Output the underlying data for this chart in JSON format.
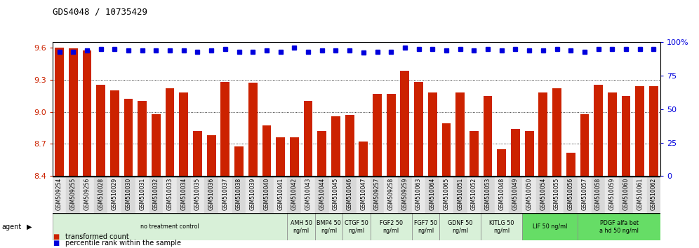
{
  "title": "GDS4048 / 10735429",
  "samples": [
    "GSM509254",
    "GSM509255",
    "GSM509256",
    "GSM510028",
    "GSM510029",
    "GSM510030",
    "GSM510031",
    "GSM510032",
    "GSM510033",
    "GSM510034",
    "GSM510035",
    "GSM510036",
    "GSM510037",
    "GSM510038",
    "GSM510039",
    "GSM510040",
    "GSM510041",
    "GSM510042",
    "GSM510043",
    "GSM510044",
    "GSM510045",
    "GSM510046",
    "GSM510047",
    "GSM509257",
    "GSM509258",
    "GSM509259",
    "GSM510063",
    "GSM510064",
    "GSM510065",
    "GSM510051",
    "GSM510052",
    "GSM510053",
    "GSM510048",
    "GSM510049",
    "GSM510050",
    "GSM510054",
    "GSM510055",
    "GSM510056",
    "GSM510057",
    "GSM510058",
    "GSM510059",
    "GSM510060",
    "GSM510061",
    "GSM510062"
  ],
  "red_values": [
    9.6,
    9.59,
    9.57,
    9.25,
    9.2,
    9.12,
    9.1,
    8.98,
    9.22,
    9.18,
    8.82,
    8.78,
    9.28,
    8.68,
    9.27,
    8.87,
    8.76,
    8.76,
    9.1,
    8.82,
    8.96,
    8.97,
    8.72,
    9.17,
    9.17,
    9.38,
    9.28,
    9.18,
    8.89,
    9.18,
    8.82,
    9.15,
    8.65,
    8.84,
    8.82,
    9.18,
    9.22,
    8.62,
    8.98,
    9.25,
    9.18,
    9.15,
    9.24,
    9.24
  ],
  "blue_values": [
    93,
    93,
    94,
    95,
    95,
    94,
    94,
    94,
    94,
    94,
    93,
    94,
    95,
    93,
    93,
    94,
    93,
    96,
    93,
    94,
    94,
    94,
    92,
    93,
    93,
    96,
    95,
    95,
    94,
    95,
    94,
    95,
    94,
    95,
    94,
    94,
    95,
    94,
    93,
    95,
    95,
    95,
    95,
    95
  ],
  "ylim_left": [
    8.4,
    9.65
  ],
  "ylim_right": [
    0,
    100
  ],
  "yticks_left": [
    8.4,
    8.7,
    9.0,
    9.3,
    9.6
  ],
  "yticks_right": [
    0,
    25,
    50,
    75,
    100
  ],
  "bar_color": "#cc2200",
  "dot_color": "#0000dd",
  "agent_groups": [
    {
      "label": "no treatment control",
      "start": 0,
      "end": 17,
      "color": "#d8f0d8"
    },
    {
      "label": "AMH 50\nng/ml",
      "start": 17,
      "end": 19,
      "color": "#d8f0d8"
    },
    {
      "label": "BMP4 50\nng/ml",
      "start": 19,
      "end": 21,
      "color": "#d8f0d8"
    },
    {
      "label": "CTGF 50\nng/ml",
      "start": 21,
      "end": 23,
      "color": "#d8f0d8"
    },
    {
      "label": "FGF2 50\nng/ml",
      "start": 23,
      "end": 26,
      "color": "#d8f0d8"
    },
    {
      "label": "FGF7 50\nng/ml",
      "start": 26,
      "end": 28,
      "color": "#d8f0d8"
    },
    {
      "label": "GDNF 50\nng/ml",
      "start": 28,
      "end": 31,
      "color": "#d8f0d8"
    },
    {
      "label": "KITLG 50\nng/ml",
      "start": 31,
      "end": 34,
      "color": "#d8f0d8"
    },
    {
      "label": "LIF 50 ng/ml",
      "start": 34,
      "end": 38,
      "color": "#66dd66"
    },
    {
      "label": "PDGF alfa bet\na hd 50 ng/ml",
      "start": 38,
      "end": 44,
      "color": "#66dd66"
    }
  ],
  "legend_items": [
    {
      "color": "#cc2200",
      "label": "transformed count"
    },
    {
      "color": "#0000dd",
      "label": "percentile rank within the sample"
    }
  ],
  "agent_label": "agent",
  "bg_color": "#ffffff",
  "plot_bg": "#ffffff",
  "spine_color": "#000000",
  "tick_label_color_left": "#cc2200",
  "tick_label_color_right": "#0000dd"
}
